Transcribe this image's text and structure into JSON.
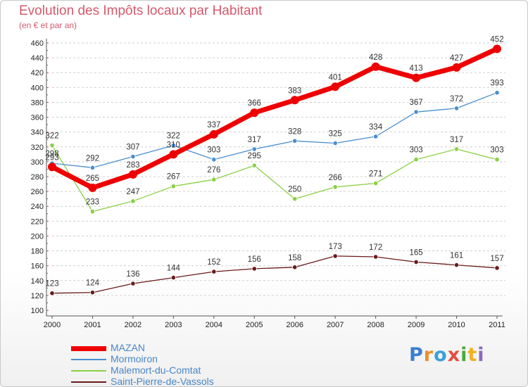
{
  "header": {
    "title": "Evolution des Impôts locaux par Habitant",
    "subtitle": "(en € et par an)"
  },
  "logo": {
    "letters": [
      {
        "ch": "P",
        "color": "#3a7fd0"
      },
      {
        "ch": "r",
        "color": "#e8902a"
      },
      {
        "ch": "o",
        "color": "#3aa0d8"
      },
      {
        "ch": "x",
        "color": "#e84c3d"
      },
      {
        "ch": "i",
        "color": "#4aaa3c"
      },
      {
        "ch": "t",
        "color": "#f0b020"
      },
      {
        "ch": "i",
        "color": "#8a6ac0"
      }
    ]
  },
  "chart_data": {
    "type": "line",
    "title": "Evolution des Impôts locaux par Habitant",
    "subtitle": "(en € et par an)",
    "x": [
      2000,
      2001,
      2002,
      2003,
      2004,
      2005,
      2006,
      2007,
      2008,
      2009,
      2010,
      2011
    ],
    "ylim": [
      100,
      460
    ],
    "ytick_step": 20,
    "grid": "horizontal dashed",
    "legend_position": "bottom-left",
    "series": [
      {
        "name": "MAZAN",
        "color": "#ee0000",
        "values": [
          293,
          265,
          283,
          310,
          337,
          366,
          383,
          401,
          428,
          413,
          427,
          452
        ]
      },
      {
        "name": "Mormoiron",
        "color": "#4a8ed0",
        "values": [
          298,
          292,
          307,
          322,
          303,
          317,
          328,
          325,
          334,
          367,
          372,
          393
        ]
      },
      {
        "name": "Malemort-du-Comtat",
        "color": "#88d044",
        "values": [
          322,
          233,
          247,
          267,
          276,
          295,
          250,
          266,
          271,
          303,
          317,
          303
        ]
      },
      {
        "name": "Saint-Pierre-de-Vassols",
        "color": "#6a1a1a",
        "values": [
          123,
          124,
          136,
          144,
          152,
          156,
          158,
          173,
          172,
          165,
          161,
          157
        ]
      }
    ]
  }
}
